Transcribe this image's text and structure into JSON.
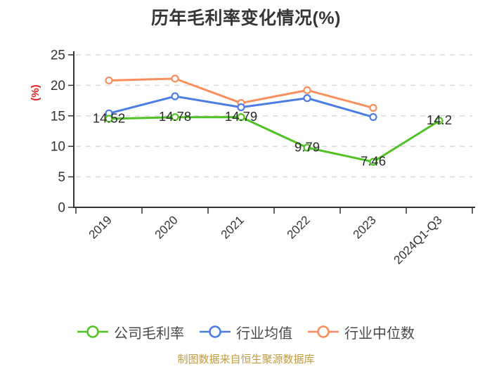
{
  "page": {
    "title": "历年毛利率变化情况(%)",
    "footer": "制图数据来自恒生聚源数据库"
  },
  "chart_data": {
    "type": "line",
    "title": "历年毛利率变化情况(%)",
    "categories": [
      "2019",
      "2020",
      "2021",
      "2022",
      "2023",
      "2024Q1-Q3"
    ],
    "series": [
      {
        "name": "公司毛利率",
        "color": "#51C226",
        "values": [
          14.52,
          14.78,
          14.79,
          9.79,
          7.46,
          14.2
        ],
        "point_labels": [
          "14.52",
          "14.78",
          "14.79",
          "9.79",
          "7.46",
          "14.2"
        ]
      },
      {
        "name": "行业均值",
        "color": "#4D7DE3",
        "values": [
          15.4,
          18.2,
          16.4,
          17.9,
          14.8,
          null
        ],
        "point_labels": null
      },
      {
        "name": "行业中位数",
        "color": "#F98E5E",
        "values": [
          20.8,
          21.1,
          17.1,
          19.2,
          16.3,
          null
        ],
        "point_labels": null
      }
    ],
    "xlabel": "",
    "ylabel": "(%)",
    "ylim": [
      0,
      25
    ],
    "ytick_step": 5,
    "ytick_labels": [
      "0",
      "5",
      "10",
      "15",
      "20",
      "25"
    ],
    "grid": "horizontal-dashed",
    "legend_position": "bottom",
    "marker": "open-circle",
    "x_label_rotation": -45,
    "colors": {
      "axis": "#333333",
      "gridline": "#DCDCDC",
      "data_label": "#2A2A2A",
      "tick_label": "#333333",
      "ylabel": "#E01F1F",
      "title": "#363636",
      "legend_text": "#4A4A4A",
      "footer": "#C09B40",
      "background": "#FFFFFF",
      "marker_fill": "#FFFFFF"
    }
  }
}
